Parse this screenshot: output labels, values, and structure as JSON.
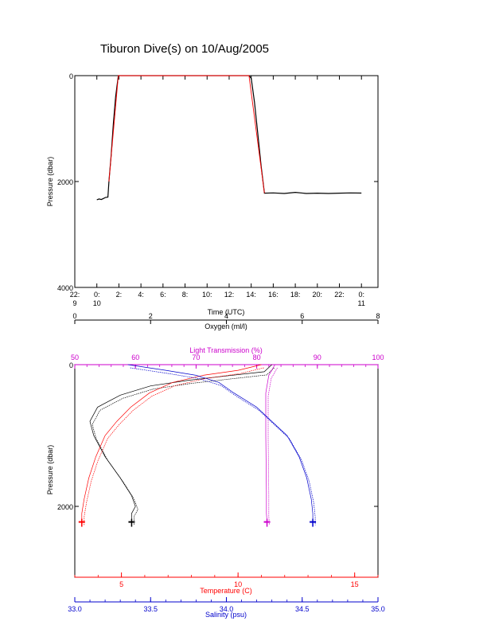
{
  "title": "Tiburon Dive(s) on 10/Aug/2005",
  "chart_data": [
    {
      "type": "line",
      "xlabel": "Time (UTC)",
      "ylabel": "Pressure (dbar)",
      "xticks": [
        {
          "t": -2,
          "top": "22:",
          "bottom": "9"
        },
        {
          "t": 0,
          "top": "0:",
          "bottom": "10"
        },
        {
          "t": 2,
          "top": "2:",
          "bottom": ""
        },
        {
          "t": 4,
          "top": "4:",
          "bottom": ""
        },
        {
          "t": 6,
          "top": "6:",
          "bottom": ""
        },
        {
          "t": 8,
          "top": "8:",
          "bottom": ""
        },
        {
          "t": 10,
          "top": "10:",
          "bottom": ""
        },
        {
          "t": 12,
          "top": "12:",
          "bottom": ""
        },
        {
          "t": 14,
          "top": "14:",
          "bottom": ""
        },
        {
          "t": 16,
          "top": "16:",
          "bottom": ""
        },
        {
          "t": 18,
          "top": "18:",
          "bottom": ""
        },
        {
          "t": 20,
          "top": "20:",
          "bottom": ""
        },
        {
          "t": 22,
          "top": "22:",
          "bottom": ""
        },
        {
          "t": 24,
          "top": "0:",
          "bottom": "11"
        }
      ],
      "yticks": [
        0,
        2000,
        4000
      ],
      "xlim": [
        -2,
        25.5
      ],
      "ylim": [
        4000,
        0
      ],
      "series": [
        {
          "color": "#000000",
          "points": [
            [
              0.0,
              2345
            ],
            [
              0.2,
              2330
            ],
            [
              0.4,
              2340
            ],
            [
              0.6,
              2320
            ],
            [
              0.8,
              2300
            ],
            [
              1.0,
              2295
            ],
            [
              1.1,
              2000
            ],
            [
              1.3,
              1500
            ],
            [
              1.5,
              900
            ],
            [
              1.7,
              400
            ],
            [
              1.95,
              0
            ],
            [
              8.0,
              0
            ],
            [
              13.8,
              0
            ],
            [
              14.0,
              50
            ],
            [
              14.3,
              500
            ],
            [
              14.6,
              1100
            ],
            [
              14.9,
              1700
            ],
            [
              15.2,
              2220
            ],
            [
              16.0,
              2215
            ],
            [
              17.0,
              2225
            ],
            [
              18.0,
              2205
            ],
            [
              19.0,
              2225
            ],
            [
              20.0,
              2220
            ],
            [
              21.0,
              2225
            ],
            [
              22.0,
              2220
            ],
            [
              23.0,
              2215
            ],
            [
              24.0,
              2218
            ]
          ]
        },
        {
          "color": "#ff0000",
          "points": [
            [
              1.1,
              2000
            ],
            [
              1.95,
              0
            ],
            [
              13.8,
              0
            ],
            [
              15.2,
              2220
            ]
          ]
        }
      ]
    },
    {
      "type": "line",
      "ylabel": "Pressure (dbar)",
      "ylim": [
        3000,
        0
      ],
      "yticks": [
        0,
        2000
      ],
      "axes": {
        "oxygen": {
          "label": "Oxygen (ml/l)",
          "range": [
            0,
            8
          ],
          "ticks": [
            "0",
            "2",
            "4",
            "6",
            "8"
          ],
          "color": "#000000"
        },
        "light": {
          "label": "Light Transmission (%)",
          "range": [
            50,
            100
          ],
          "ticks": [
            "50",
            "60",
            "70",
            "80",
            "90",
            "100"
          ],
          "color": "#cc00cc"
        },
        "temperature": {
          "label": "Temperature (C)",
          "range": [
            3,
            16
          ],
          "ticks": [
            "5",
            "10",
            "15"
          ],
          "color": "#ff0000"
        },
        "salinity": {
          "label": "Salinity (psu)",
          "range": [
            33.0,
            35.0
          ],
          "ticks": [
            "33.0",
            "33.5",
            "34.0",
            "34.5",
            "35.0"
          ],
          "color": "#0000cc"
        }
      },
      "series": [
        {
          "name": "Oxygen",
          "axis": "oxygen",
          "color": "#000000",
          "points": [
            [
              5.2,
              0
            ],
            [
              5.0,
              100
            ],
            [
              4.0,
              160
            ],
            [
              3.0,
              220
            ],
            [
              2.0,
              300
            ],
            [
              1.2,
              430
            ],
            [
              0.6,
              600
            ],
            [
              0.4,
              800
            ],
            [
              0.5,
              1000
            ],
            [
              0.8,
              1300
            ],
            [
              1.2,
              1600
            ],
            [
              1.5,
              1850
            ],
            [
              1.6,
              2000
            ],
            [
              1.5,
              2100
            ],
            [
              1.5,
              2220
            ]
          ]
        },
        {
          "name": "Light Transmission",
          "axis": "light",
          "color": "#cc00cc",
          "points": [
            [
              83,
              0
            ],
            [
              82,
              150
            ],
            [
              81.5,
              400
            ],
            [
              81.5,
              1000
            ],
            [
              81.6,
              1800
            ],
            [
              81.6,
              2100
            ],
            [
              81.7,
              2220
            ]
          ]
        },
        {
          "name": "Temperature",
          "axis": "temperature",
          "color": "#ff0000",
          "points": [
            [
              11.0,
              0
            ],
            [
              10.0,
              80
            ],
            [
              8.5,
              150
            ],
            [
              7.2,
              250
            ],
            [
              6.2,
              400
            ],
            [
              5.4,
              600
            ],
            [
              4.8,
              800
            ],
            [
              4.3,
              1000
            ],
            [
              3.9,
              1300
            ],
            [
              3.6,
              1600
            ],
            [
              3.4,
              1900
            ],
            [
              3.3,
              2100
            ],
            [
              3.3,
              2220
            ]
          ]
        },
        {
          "name": "Salinity",
          "axis": "salinity",
          "color": "#0000cc",
          "points": [
            [
              33.35,
              0
            ],
            [
              33.6,
              80
            ],
            [
              33.8,
              150
            ],
            [
              33.95,
              250
            ],
            [
              34.05,
              400
            ],
            [
              34.2,
              600
            ],
            [
              34.3,
              800
            ],
            [
              34.4,
              1000
            ],
            [
              34.48,
              1300
            ],
            [
              34.53,
              1600
            ],
            [
              34.56,
              1900
            ],
            [
              34.57,
              2100
            ],
            [
              34.57,
              2220
            ]
          ]
        }
      ]
    }
  ]
}
